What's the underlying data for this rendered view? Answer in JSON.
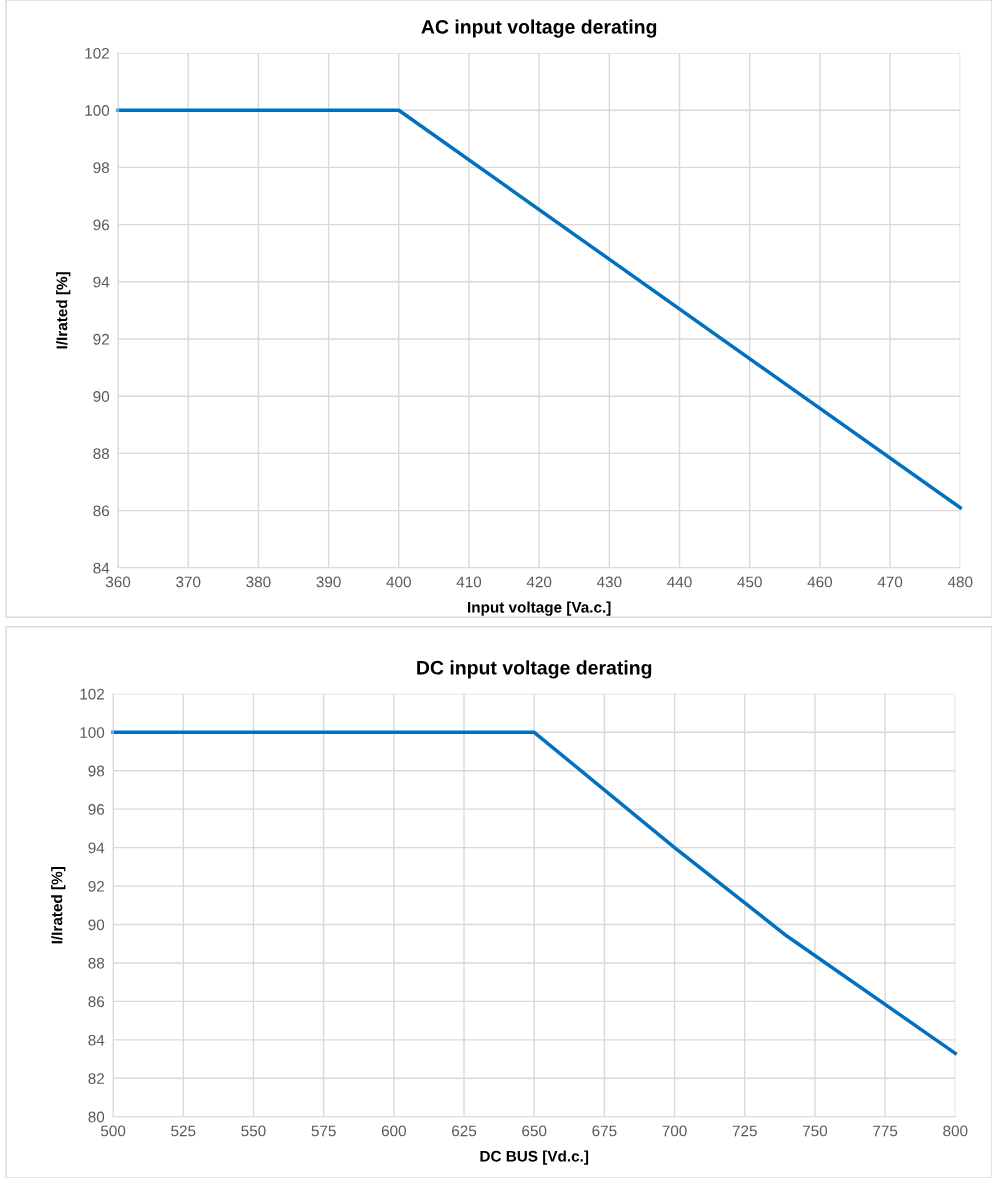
{
  "chart_data": [
    {
      "type": "line",
      "title": "AC input voltage derating",
      "xlabel": "Input voltage [Va.c.]",
      "ylabel": "I/Irated [%]",
      "x": [
        360,
        400,
        480
      ],
      "series": [
        {
          "color": "#0070c0",
          "values": [
            100,
            100,
            86.1
          ]
        }
      ],
      "xlim": [
        360,
        480
      ],
      "xticks": [
        360,
        370,
        380,
        390,
        400,
        410,
        420,
        430,
        440,
        450,
        460,
        470,
        480
      ],
      "ylim": [
        84,
        102
      ],
      "yticks": [
        84,
        86,
        88,
        90,
        92,
        94,
        96,
        98,
        100,
        102
      ],
      "grid": true,
      "marker": "none",
      "line_style": "solid"
    },
    {
      "type": "line",
      "title": "DC input voltage derating",
      "xlabel": "DC BUS [Vd.c.]",
      "ylabel": "I/Irated [%]",
      "x": [
        500,
        650,
        700,
        740,
        800
      ],
      "series": [
        {
          "color": "#0070c0",
          "values": [
            100,
            100,
            94,
            89.4,
            83.3
          ]
        }
      ],
      "xlim": [
        500,
        800
      ],
      "xticks": [
        500,
        525,
        550,
        575,
        600,
        625,
        650,
        675,
        700,
        725,
        750,
        775,
        800
      ],
      "ylim": [
        80,
        102
      ],
      "yticks": [
        80,
        82,
        84,
        86,
        88,
        90,
        92,
        94,
        96,
        98,
        100,
        102
      ],
      "grid": true,
      "marker": "none",
      "line_style": "solid"
    }
  ]
}
